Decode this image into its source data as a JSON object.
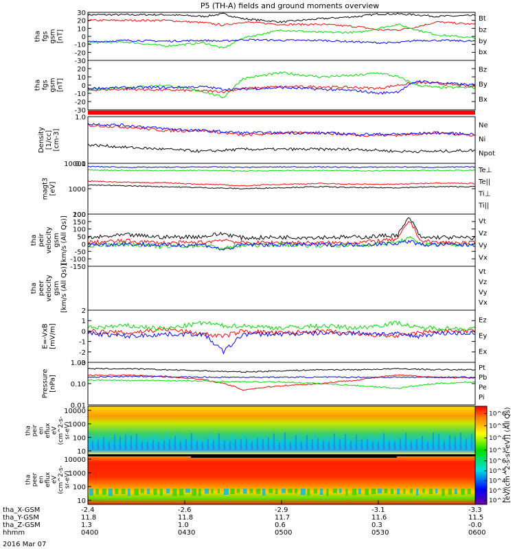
{
  "figure": {
    "title": "P5 (TH-A) fields and ground moments overview",
    "date_label": "2016 Mar 07"
  },
  "chart_data": [
    {
      "type": "line",
      "panel": "fgs-gsm",
      "ylabel": [
        "tha",
        "fgs",
        "gsm",
        "[nT]"
      ],
      "ylim": [
        -30,
        30
      ],
      "yticks": [
        30,
        20,
        10,
        0,
        -10,
        -20,
        -30
      ],
      "x": [
        0,
        0.1,
        0.2,
        0.3,
        0.35,
        0.4,
        0.5,
        0.6,
        0.7,
        0.75,
        0.8,
        0.85,
        0.9,
        1.0
      ],
      "series": [
        {
          "name": "Bt",
          "color": "#000000",
          "values": [
            27,
            27,
            27,
            25,
            28,
            22,
            18,
            22,
            25,
            28,
            28,
            27,
            25,
            26
          ]
        },
        {
          "name": "bz",
          "color": "#ff0000",
          "values": [
            20,
            20,
            20,
            17,
            14,
            18,
            15,
            15,
            12,
            8,
            8,
            12,
            18,
            15
          ]
        },
        {
          "name": "by",
          "color": "#00dd00",
          "values": [
            -8,
            -7,
            -12,
            -8,
            -15,
            -2,
            8,
            5,
            5,
            10,
            15,
            8,
            2,
            -2
          ]
        },
        {
          "name": "bx",
          "color": "#0000ff",
          "values": [
            -7,
            -5,
            -6,
            -5,
            -6,
            -4,
            -5,
            -5,
            -7,
            -8,
            -8,
            -5,
            -5,
            -6
          ]
        }
      ]
    },
    {
      "type": "line",
      "panel": "fgs-gsm-coupled",
      "ylabel": [
        "tha",
        "fgs",
        "gsm",
        "[nT]"
      ],
      "ylim": [
        -30,
        30
      ],
      "yticks": [
        20,
        10,
        0,
        -10,
        -20,
        -30
      ],
      "x": [
        0,
        0.1,
        0.2,
        0.3,
        0.35,
        0.4,
        0.5,
        0.6,
        0.7,
        0.75,
        0.8,
        0.85,
        0.9,
        1.0
      ],
      "series": [
        {
          "name": "Bz",
          "color": "#ff0000",
          "values": [
            -6,
            -5,
            -6,
            -7,
            -8,
            -4,
            -2,
            -2,
            -3,
            -4,
            0,
            3,
            2,
            -2
          ]
        },
        {
          "name": "By",
          "color": "#00dd00",
          "values": [
            -5,
            -3,
            0,
            -8,
            -15,
            8,
            15,
            10,
            12,
            15,
            10,
            0,
            -3,
            -3
          ]
        },
        {
          "name": "Bx",
          "color": "#0000ff",
          "values": [
            -4,
            -3,
            -3,
            -2,
            -5,
            -5,
            -3,
            -5,
            -7,
            -10,
            -8,
            5,
            3,
            0
          ]
        }
      ]
    },
    {
      "type": "line",
      "panel": "density",
      "scale": "log",
      "ylabel": [
        "Density",
        "[1/cc]",
        "[cm-3]"
      ],
      "ylim": [
        0.1,
        1.0
      ],
      "yticks": [
        "1.0",
        "0.1"
      ],
      "x": [
        0,
        0.1,
        0.2,
        0.3,
        0.4,
        0.5,
        0.6,
        0.7,
        0.8,
        0.9,
        1.0
      ],
      "series": [
        {
          "name": "Ne",
          "color": "#ff0000",
          "values": [
            0.65,
            0.6,
            0.5,
            0.5,
            0.4,
            0.45,
            0.45,
            0.4,
            0.4,
            0.45,
            0.4
          ]
        },
        {
          "name": "Ni",
          "color": "#000000",
          "values": [
            0.25,
            0.22,
            0.2,
            0.18,
            0.2,
            0.2,
            0.2,
            0.2,
            0.18,
            0.18,
            0.19
          ]
        },
        {
          "name": "Npot",
          "color": "#0000ff",
          "values": [
            0.7,
            0.65,
            0.55,
            0.5,
            0.45,
            0.45,
            0.45,
            0.42,
            0.42,
            0.45,
            0.42
          ]
        }
      ]
    },
    {
      "type": "line",
      "panel": "temperature",
      "scale": "log",
      "ylabel": [
        "magt3",
        "[eV]"
      ],
      "ylim": [
        100,
        10000
      ],
      "yticks": [
        "10000",
        "1000",
        "100"
      ],
      "x": [
        0,
        0.1,
        0.2,
        0.3,
        0.4,
        0.5,
        0.6,
        0.7,
        0.8,
        0.9,
        1.0
      ],
      "series": [
        {
          "name": "Te⊥",
          "color": "#ff0000",
          "values": [
            2000,
            1800,
            1700,
            1500,
            1300,
            1500,
            1600,
            1500,
            1500,
            1700,
            1600
          ]
        },
        {
          "name": "Te||",
          "color": "#000000",
          "values": [
            1400,
            1300,
            1200,
            1100,
            1000,
            1100,
            1200,
            1100,
            1100,
            1200,
            1200
          ]
        },
        {
          "name": "Ti⊥",
          "color": "#0000ff",
          "values": [
            7500,
            7000,
            7000,
            7200,
            7000,
            7200,
            7200,
            7000,
            7200,
            7000,
            7200
          ]
        },
        {
          "name": "Ti||",
          "color": "#00dd00",
          "values": [
            5500,
            5300,
            5200,
            5300,
            5000,
            5200,
            5200,
            5100,
            5300,
            5200,
            5300
          ]
        }
      ]
    },
    {
      "type": "line",
      "panel": "peir-velocity",
      "ylabel": [
        "tha",
        "peir",
        "velocity",
        "gsm",
        "[km/s (All Qs)]"
      ],
      "ylim": [
        -150,
        200
      ],
      "yticks": [
        200,
        150,
        100,
        50,
        0,
        -50,
        -100,
        -150
      ],
      "x": [
        0,
        0.1,
        0.2,
        0.3,
        0.35,
        0.4,
        0.5,
        0.6,
        0.7,
        0.8,
        0.83,
        0.86,
        0.9,
        1.0
      ],
      "series": [
        {
          "name": "Vt",
          "color": "#000000",
          "values": [
            40,
            60,
            45,
            50,
            70,
            40,
            45,
            45,
            45,
            60,
            180,
            40,
            45,
            40
          ]
        },
        {
          "name": "Vz",
          "color": "#ff0000",
          "values": [
            10,
            20,
            5,
            10,
            30,
            5,
            10,
            5,
            10,
            30,
            160,
            20,
            10,
            5
          ]
        },
        {
          "name": "Vy",
          "color": "#00dd00",
          "values": [
            -10,
            0,
            -20,
            -10,
            -30,
            -10,
            -5,
            -10,
            -10,
            10,
            40,
            0,
            -5,
            -10
          ]
        },
        {
          "name": "Vx",
          "color": "#0000ff",
          "values": [
            -5,
            0,
            -10,
            -5,
            -40,
            -5,
            -5,
            -5,
            -5,
            5,
            20,
            -5,
            -5,
            -5
          ]
        }
      ]
    },
    {
      "type": "line",
      "panel": "peer-velocity",
      "ylabel": [
        "tha",
        "peer",
        "velocity",
        "gsm",
        "[km/s (All Qs)]"
      ],
      "series": [
        {
          "name": "Vt",
          "color": "#000000",
          "values": []
        },
        {
          "name": "Vz",
          "color": "#ff0000",
          "values": []
        },
        {
          "name": "Vy",
          "color": "#00dd00",
          "values": []
        },
        {
          "name": "Vx",
          "color": "#0000ff",
          "values": []
        }
      ]
    },
    {
      "type": "line",
      "panel": "electric-field",
      "ylabel": [
        "E=-VxB",
        "[mV/m]"
      ],
      "ylim": [
        -3,
        2
      ],
      "yticks": [
        2,
        1,
        0,
        -1,
        -2,
        -3
      ],
      "x": [
        0,
        0.1,
        0.2,
        0.3,
        0.35,
        0.4,
        0.5,
        0.6,
        0.7,
        0.8,
        0.85,
        0.9,
        1.0
      ],
      "series": [
        {
          "name": "Ez",
          "color": "#ff0000",
          "values": [
            0,
            -0.2,
            0.2,
            -0.3,
            -0.5,
            0,
            -0.2,
            0,
            -0.3,
            -0.5,
            -0.2,
            0,
            0
          ]
        },
        {
          "name": "Ey",
          "color": "#00dd00",
          "values": [
            0.3,
            0.5,
            0.2,
            0.8,
            0.5,
            0.5,
            0.3,
            0.5,
            0.3,
            0.8,
            0.3,
            0.3,
            0.2
          ]
        },
        {
          "name": "Ex",
          "color": "#0000ff",
          "values": [
            -0.2,
            -0.5,
            -0.3,
            -0.3,
            -2.0,
            -0.3,
            -0.3,
            -0.2,
            -0.2,
            -0.3,
            -0.5,
            -0.2,
            -0.2
          ]
        }
      ]
    },
    {
      "type": "line",
      "panel": "pressure",
      "scale": "log",
      "ylabel": [
        "Pressure",
        "[nPa]"
      ],
      "ylim": [
        0.01,
        1.0
      ],
      "yticks": [
        "1.00",
        "0.10",
        "0.01"
      ],
      "x": [
        0,
        0.1,
        0.2,
        0.3,
        0.4,
        0.5,
        0.6,
        0.7,
        0.8,
        0.9,
        1.0
      ],
      "series": [
        {
          "name": "Pt",
          "color": "#000000",
          "values": [
            0.5,
            0.5,
            0.45,
            0.4,
            0.35,
            0.4,
            0.45,
            0.45,
            0.5,
            0.45,
            0.45
          ]
        },
        {
          "name": "Pb",
          "color": "#ff0000",
          "values": [
            0.25,
            0.25,
            0.22,
            0.15,
            0.05,
            0.08,
            0.1,
            0.15,
            0.25,
            0.2,
            0.18
          ]
        },
        {
          "name": "Pe",
          "color": "#00dd00",
          "values": [
            0.15,
            0.14,
            0.14,
            0.13,
            0.12,
            0.12,
            0.1,
            0.08,
            0.06,
            0.1,
            0.12
          ]
        },
        {
          "name": "Pi",
          "color": "#0000ff",
          "values": [
            0.2,
            0.22,
            0.21,
            0.2,
            0.2,
            0.2,
            0.2,
            0.2,
            0.2,
            0.2,
            0.2
          ]
        }
      ]
    },
    {
      "type": "heatmap",
      "panel": "peir-en-eflux",
      "ylabel": [
        "tha",
        "peir",
        "en",
        "eflux",
        "eV",
        "(cm^2-s-",
        "sr-eV)"
      ],
      "ylim": [
        10,
        10000
      ],
      "yticks": [
        "10000",
        "1000",
        "100",
        "10"
      ]
    },
    {
      "type": "heatmap",
      "panel": "peer-en-eflux",
      "ylabel": [
        "tha",
        "peer",
        "en",
        "eflux",
        "eV",
        "(cm^2-s-",
        "sr-eV)"
      ],
      "ylim": [
        10,
        10000
      ],
      "yticks": [
        "10000",
        "1000",
        "100",
        "10"
      ]
    },
    {
      "type": "colorbar",
      "label": "[eV/(cm^2-s-sr-eV)] (All Qs)",
      "ticks_upper": [
        "10^6",
        "10^5",
        "10^4",
        "10^3"
      ],
      "ticks_lower": [
        "10^6",
        "10^5",
        "10^4",
        "10^3",
        "10^2"
      ]
    }
  ],
  "xaxis": {
    "rows": [
      {
        "label": "tha_X-GSM",
        "values": [
          "-2.4",
          "-2.6",
          "-2.9",
          "-3.1",
          "-3.3"
        ]
      },
      {
        "label": "tha_Y-GSM",
        "values": [
          "11.8",
          "11.8",
          "11.7",
          "11.6",
          "11.5"
        ]
      },
      {
        "label": "tha_Z-GSM",
        "values": [
          "1.3",
          "1.0",
          "0.6",
          "0.3",
          "-0.0"
        ]
      },
      {
        "label": "hhmm",
        "values": [
          "0400",
          "0430",
          "0500",
          "0530",
          "0600"
        ]
      }
    ]
  }
}
